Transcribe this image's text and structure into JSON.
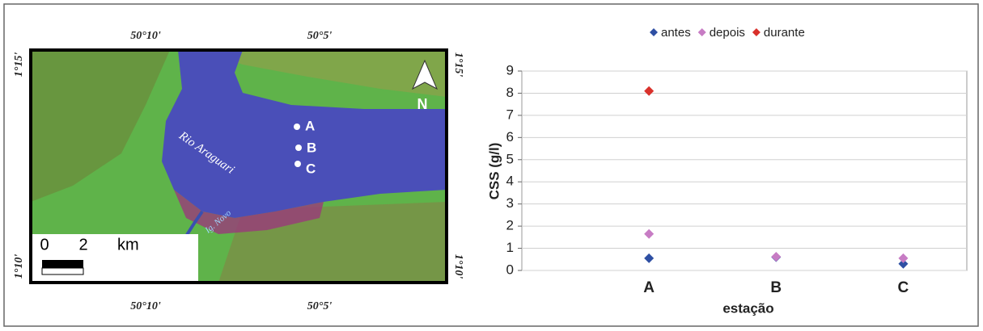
{
  "map": {
    "lon_labels": [
      "50°10'",
      "50°5'"
    ],
    "lat_labels": [
      "1°15'",
      "1°10'"
    ],
    "river_label": "Rio Araguari",
    "creek_label": "Ig. Novo",
    "stations": [
      "A",
      "B",
      "C"
    ],
    "north": "N",
    "scale": {
      "start": "0",
      "end": "2",
      "unit": "km"
    }
  },
  "chart_data": {
    "type": "scatter",
    "categories": [
      "A",
      "B",
      "C"
    ],
    "x_label": "estação",
    "y_label": "CSS (g/l)",
    "ylim": [
      0,
      9
    ],
    "yticks": [
      0,
      1,
      2,
      3,
      4,
      5,
      6,
      7,
      8,
      9
    ],
    "grid": true,
    "legend": "top",
    "series": [
      {
        "name": "antes",
        "color": "#2e4fa3",
        "values": [
          0.55,
          0.6,
          0.3
        ]
      },
      {
        "name": "depois",
        "color": "#c77cc4",
        "values": [
          1.65,
          0.62,
          0.55
        ]
      },
      {
        "name": "durante",
        "color": "#d9312b",
        "values": [
          8.1,
          null,
          null
        ]
      }
    ]
  }
}
